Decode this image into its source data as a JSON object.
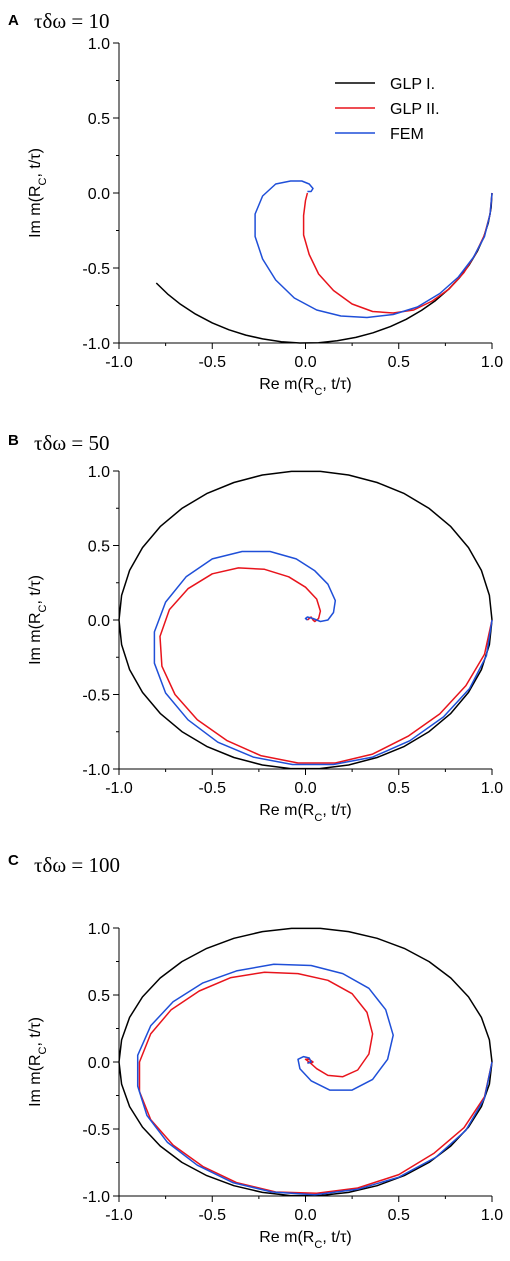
{
  "chart_data": [
    {
      "type": "line",
      "panel": "A",
      "title": "τδω = 10",
      "xlabel": "Re m(R_C, t/τ)",
      "ylabel": "Im m(R_C, t/τ)",
      "xlim": [
        -1.0,
        1.0
      ],
      "ylim": [
        -1.0,
        1.0
      ],
      "xticks": [
        "-1.0",
        "-0.5",
        "0.0",
        "0.5",
        "1.0"
      ],
      "yticks": [
        "-1.0",
        "-0.5",
        "0.0",
        "0.5",
        "1.0"
      ],
      "grid": false,
      "legend": "top-right",
      "series": [
        {
          "name": "GLP I.",
          "color": "#000000",
          "x": [
            1.0,
            0.995,
            0.98,
            0.955,
            0.921,
            0.878,
            0.825,
            0.765,
            0.697,
            0.622,
            0.54,
            0.455,
            0.362,
            0.27,
            0.17,
            0.07,
            -0.03,
            -0.13,
            -0.23,
            -0.32,
            -0.41,
            -0.5,
            -0.59,
            -0.67,
            -0.74,
            -0.8
          ],
          "y": [
            0.0,
            -0.1,
            -0.199,
            -0.296,
            -0.389,
            -0.479,
            -0.565,
            -0.644,
            -0.717,
            -0.783,
            -0.842,
            -0.891,
            -0.932,
            -0.963,
            -0.985,
            -0.998,
            -1.0,
            -0.992,
            -0.973,
            -0.947,
            -0.912,
            -0.866,
            -0.807,
            -0.742,
            -0.673,
            -0.6
          ]
        },
        {
          "name": "GLP II.",
          "color": "#e8141c",
          "x": [
            1.0,
            0.99,
            0.96,
            0.91,
            0.85,
            0.77,
            0.68,
            0.58,
            0.47,
            0.36,
            0.25,
            0.15,
            0.07,
            0.02,
            -0.01,
            -0.01,
            0.0,
            0.01
          ],
          "y": [
            0.0,
            -0.14,
            -0.28,
            -0.41,
            -0.53,
            -0.64,
            -0.72,
            -0.78,
            -0.8,
            -0.79,
            -0.74,
            -0.65,
            -0.54,
            -0.41,
            -0.28,
            -0.15,
            -0.05,
            0.0
          ]
        },
        {
          "name": "FEM",
          "color": "#1f4fd8",
          "x": [
            1.0,
            0.99,
            0.96,
            0.9,
            0.82,
            0.72,
            0.6,
            0.47,
            0.33,
            0.19,
            0.06,
            -0.06,
            -0.16,
            -0.23,
            -0.27,
            -0.27,
            -0.23,
            -0.16,
            -0.08,
            -0.02,
            0.02,
            0.04,
            0.03,
            0.01
          ],
          "y": [
            0.0,
            -0.14,
            -0.29,
            -0.43,
            -0.56,
            -0.67,
            -0.76,
            -0.81,
            -0.83,
            -0.82,
            -0.78,
            -0.7,
            -0.58,
            -0.44,
            -0.29,
            -0.14,
            -0.02,
            0.06,
            0.08,
            0.08,
            0.06,
            0.03,
            0.01,
            0.01
          ]
        }
      ]
    },
    {
      "type": "line",
      "panel": "B",
      "title": "τδω = 50",
      "xlabel": "Re m(R_C, t/τ)",
      "ylabel": "Im m(R_C, t/τ)",
      "xlim": [
        -1.0,
        1.0
      ],
      "ylim": [
        -1.0,
        1.0
      ],
      "xticks": [
        "-1.0",
        "-0.5",
        "0.0",
        "0.5",
        "1.0"
      ],
      "yticks": [
        "-1.0",
        "-0.5",
        "0.0",
        "0.5",
        "1.0"
      ],
      "grid": false,
      "series": [
        {
          "name": "GLP I.",
          "color": "#000000",
          "x": [
            1.0,
            0.986,
            0.943,
            0.874,
            0.779,
            0.663,
            0.53,
            0.384,
            0.231,
            0.075,
            -0.08,
            -0.231,
            -0.384,
            -0.53,
            -0.663,
            -0.779,
            -0.874,
            -0.943,
            -0.986,
            -1.0,
            -0.986,
            -0.943,
            -0.874,
            -0.779,
            -0.663,
            -0.53,
            -0.384,
            -0.231,
            -0.075,
            0.08,
            0.231,
            0.384,
            0.53,
            0.663,
            0.779,
            0.874,
            0.943,
            0.986,
            1.0
          ],
          "y": [
            0.0,
            -0.165,
            -0.333,
            -0.486,
            -0.627,
            -0.749,
            -0.848,
            -0.923,
            -0.973,
            -0.997,
            -0.997,
            -0.973,
            -0.923,
            -0.848,
            -0.749,
            -0.627,
            -0.486,
            -0.333,
            -0.165,
            0.0,
            0.165,
            0.333,
            0.486,
            0.627,
            0.749,
            0.848,
            0.923,
            0.973,
            0.997,
            0.997,
            0.973,
            0.923,
            0.848,
            0.749,
            0.627,
            0.486,
            0.333,
            0.165,
            0.0
          ]
        },
        {
          "name": "GLP II.",
          "color": "#e8141c",
          "x": [
            1.0,
            0.96,
            0.86,
            0.72,
            0.55,
            0.36,
            0.16,
            -0.04,
            -0.24,
            -0.42,
            -0.58,
            -0.7,
            -0.77,
            -0.78,
            -0.73,
            -0.63,
            -0.5,
            -0.36,
            -0.22,
            -0.09,
            0.0,
            0.06,
            0.08,
            0.07,
            0.05,
            0.04,
            0.03,
            0.02,
            0.01
          ],
          "y": [
            0.0,
            -0.23,
            -0.44,
            -0.63,
            -0.78,
            -0.9,
            -0.96,
            -0.96,
            -0.91,
            -0.81,
            -0.67,
            -0.5,
            -0.31,
            -0.11,
            0.07,
            0.21,
            0.31,
            0.35,
            0.34,
            0.29,
            0.22,
            0.14,
            0.06,
            0.01,
            -0.01,
            0.0,
            0.02,
            0.01,
            0.0
          ]
        },
        {
          "name": "FEM",
          "color": "#1f4fd8",
          "x": [
            1.0,
            0.97,
            0.88,
            0.74,
            0.56,
            0.36,
            0.15,
            -0.07,
            -0.28,
            -0.47,
            -0.63,
            -0.75,
            -0.81,
            -0.81,
            -0.75,
            -0.64,
            -0.5,
            -0.34,
            -0.19,
            -0.05,
            0.05,
            0.12,
            0.16,
            0.15,
            0.12,
            0.08,
            0.04,
            0.01,
            0.0,
            0.01
          ],
          "y": [
            0.0,
            -0.24,
            -0.46,
            -0.65,
            -0.81,
            -0.92,
            -0.97,
            -0.97,
            -0.92,
            -0.82,
            -0.67,
            -0.49,
            -0.29,
            -0.08,
            0.12,
            0.29,
            0.41,
            0.46,
            0.46,
            0.41,
            0.33,
            0.24,
            0.13,
            0.05,
            0.0,
            -0.01,
            0.01,
            0.02,
            0.01,
            0.0
          ]
        }
      ]
    },
    {
      "type": "line",
      "panel": "C",
      "title": "τδω = 100",
      "xlabel": "Re m(R_C, t/τ)",
      "ylabel": "Im m(R_C, t/τ)",
      "xlim": [
        -1.0,
        1.0
      ],
      "ylim": [
        -1.0,
        1.0
      ],
      "xticks": [
        "-1.0",
        "-0.5",
        "0.0",
        "0.5",
        "1.0"
      ],
      "yticks": [
        "-1.0",
        "-0.5",
        "0.0",
        "0.5",
        "1.0"
      ],
      "grid": false,
      "series": [
        {
          "name": "GLP I.",
          "color": "#000000",
          "x": [
            1.0,
            0.986,
            0.943,
            0.874,
            0.779,
            0.663,
            0.53,
            0.384,
            0.231,
            0.075,
            -0.08,
            -0.231,
            -0.384,
            -0.53,
            -0.663,
            -0.779,
            -0.874,
            -0.943,
            -0.986,
            -1.0,
            -0.986,
            -0.943,
            -0.874,
            -0.779,
            -0.663,
            -0.53,
            -0.384,
            -0.231,
            -0.075,
            0.08,
            0.231,
            0.384,
            0.53,
            0.663,
            0.779,
            0.874,
            0.943,
            0.986,
            1.0
          ],
          "y": [
            0.0,
            -0.165,
            -0.333,
            -0.486,
            -0.627,
            -0.749,
            -0.848,
            -0.923,
            -0.973,
            -0.997,
            -0.997,
            -0.973,
            -0.923,
            -0.848,
            -0.749,
            -0.627,
            -0.486,
            -0.333,
            -0.165,
            0.0,
            0.165,
            0.333,
            0.486,
            0.627,
            0.749,
            0.848,
            0.923,
            0.973,
            0.997,
            0.997,
            0.973,
            0.923,
            0.848,
            0.749,
            0.627,
            0.486,
            0.333,
            0.165,
            0.0
          ]
        },
        {
          "name": "GLP II.",
          "color": "#e8141c",
          "x": [
            1.0,
            0.96,
            0.85,
            0.69,
            0.5,
            0.28,
            0.06,
            -0.16,
            -0.37,
            -0.55,
            -0.71,
            -0.83,
            -0.89,
            -0.89,
            -0.83,
            -0.72,
            -0.57,
            -0.4,
            -0.22,
            -0.04,
            0.12,
            0.25,
            0.33,
            0.36,
            0.34,
            0.28,
            0.2,
            0.12,
            0.06,
            0.02,
            0.0,
            0.02,
            0.04,
            0.03,
            0.01
          ],
          "y": [
            0.0,
            -0.26,
            -0.49,
            -0.68,
            -0.84,
            -0.94,
            -0.98,
            -0.97,
            -0.9,
            -0.78,
            -0.62,
            -0.43,
            -0.22,
            0.0,
            0.21,
            0.39,
            0.53,
            0.63,
            0.67,
            0.66,
            0.61,
            0.51,
            0.37,
            0.21,
            0.06,
            -0.06,
            -0.11,
            -0.1,
            -0.05,
            0.0,
            0.02,
            0.02,
            0.0,
            -0.01,
            0.0
          ]
        },
        {
          "name": "FEM",
          "color": "#1f4fd8",
          "x": [
            1.0,
            0.96,
            0.86,
            0.7,
            0.5,
            0.28,
            0.05,
            -0.18,
            -0.39,
            -0.58,
            -0.74,
            -0.85,
            -0.9,
            -0.9,
            -0.83,
            -0.71,
            -0.55,
            -0.37,
            -0.17,
            0.03,
            0.2,
            0.34,
            0.43,
            0.47,
            0.44,
            0.36,
            0.25,
            0.13,
            0.03,
            -0.03,
            -0.04,
            -0.01,
            0.02,
            0.03,
            0.01
          ],
          "y": [
            0.0,
            -0.27,
            -0.51,
            -0.71,
            -0.86,
            -0.95,
            -0.99,
            -0.97,
            -0.9,
            -0.77,
            -0.6,
            -0.4,
            -0.18,
            0.05,
            0.27,
            0.45,
            0.59,
            0.68,
            0.73,
            0.72,
            0.66,
            0.55,
            0.39,
            0.2,
            0.02,
            -0.13,
            -0.21,
            -0.21,
            -0.14,
            -0.05,
            0.02,
            0.04,
            0.03,
            0.0,
            -0.01
          ]
        }
      ]
    }
  ]
}
